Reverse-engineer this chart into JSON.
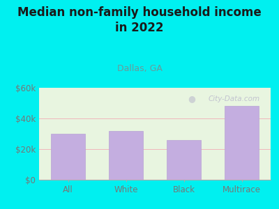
{
  "title_line1": "Median non-family household income",
  "title_line2": "in 2022",
  "subtitle": "Dallas, GA",
  "categories": [
    "All",
    "White",
    "Black",
    "Multirace"
  ],
  "values": [
    30000,
    32000,
    26000,
    48000
  ],
  "bar_color": "#c4aee0",
  "bar_edge_color": "#b8a2d4",
  "ylim": [
    0,
    60000
  ],
  "yticks": [
    0,
    20000,
    40000,
    60000
  ],
  "ytick_labels": [
    "$0",
    "$20k",
    "$40k",
    "$60k"
  ],
  "outer_bg_color": "#00f0f0",
  "plot_bg_color": "#e8f5e0",
  "grid_color_h": "#f0b0b8",
  "title_color": "#1a1a1a",
  "subtitle_color": "#6a9a9a",
  "ytick_label_color": "#777777",
  "xtick_label_color": "#777777",
  "watermark_text": "City-Data.com",
  "watermark_color": "#bbbbcc",
  "title_fontsize": 12,
  "subtitle_fontsize": 9,
  "tick_fontsize": 8.5,
  "axis_label_color": "#888888"
}
